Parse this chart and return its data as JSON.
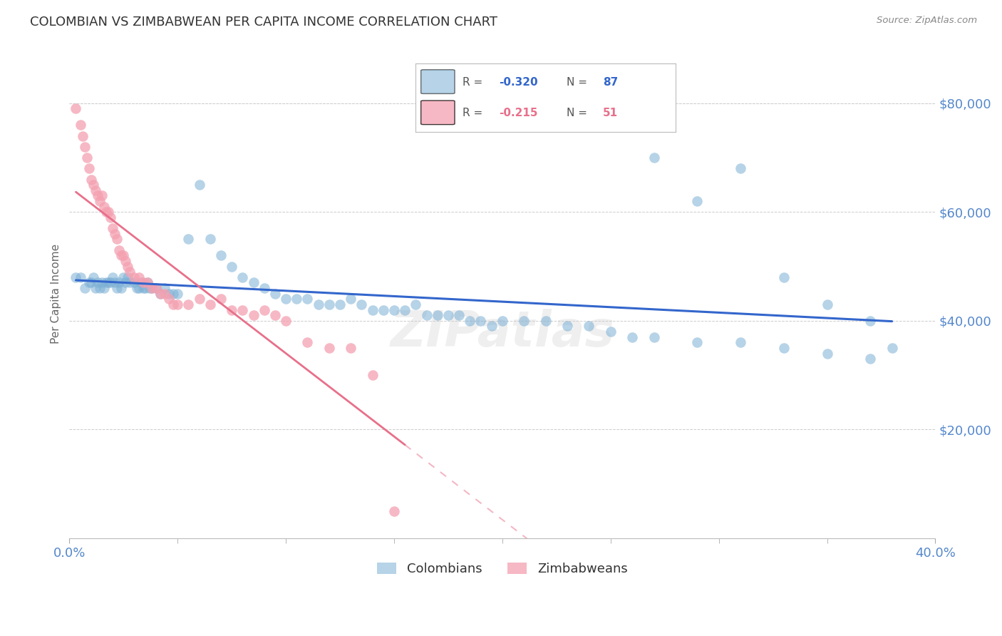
{
  "title": "COLOMBIAN VS ZIMBABWEAN PER CAPITA INCOME CORRELATION CHART",
  "source": "Source: ZipAtlas.com",
  "ylabel": "Per Capita Income",
  "xlim": [
    0.0,
    0.4
  ],
  "ylim": [
    0,
    90000
  ],
  "colombians_R": -0.32,
  "colombians_N": 87,
  "zimbabweans_R": -0.215,
  "zimbabweans_N": 51,
  "colombian_color": "#7BAFD4",
  "zimbabwean_color": "#F4A0B0",
  "colombian_line_color": "#3366CC",
  "zimbabwean_line_color": "#E8708A",
  "watermark": "ZIPatlas",
  "background_color": "#FFFFFF",
  "title_color": "#333333",
  "axis_label_color": "#5588CC",
  "grid_color": "#CCCCCC",
  "colombians_x": [
    0.003,
    0.005,
    0.007,
    0.009,
    0.01,
    0.011,
    0.012,
    0.013,
    0.014,
    0.015,
    0.016,
    0.017,
    0.018,
    0.019,
    0.02,
    0.021,
    0.022,
    0.023,
    0.024,
    0.025,
    0.026,
    0.027,
    0.028,
    0.03,
    0.031,
    0.032,
    0.033,
    0.034,
    0.035,
    0.036,
    0.037,
    0.038,
    0.04,
    0.042,
    0.044,
    0.046,
    0.048,
    0.05,
    0.055,
    0.06,
    0.065,
    0.07,
    0.075,
    0.08,
    0.085,
    0.09,
    0.095,
    0.1,
    0.105,
    0.11,
    0.115,
    0.12,
    0.125,
    0.13,
    0.135,
    0.14,
    0.145,
    0.15,
    0.155,
    0.16,
    0.165,
    0.17,
    0.175,
    0.18,
    0.185,
    0.19,
    0.195,
    0.2,
    0.21,
    0.22,
    0.23,
    0.24,
    0.25,
    0.26,
    0.27,
    0.29,
    0.31,
    0.33,
    0.35,
    0.37,
    0.27,
    0.29,
    0.31,
    0.33,
    0.35,
    0.37,
    0.38
  ],
  "colombians_y": [
    48000,
    48000,
    46000,
    47000,
    47000,
    48000,
    46000,
    47000,
    46000,
    47000,
    46000,
    47000,
    47000,
    47000,
    48000,
    47000,
    46000,
    47000,
    46000,
    48000,
    47000,
    48000,
    47000,
    47000,
    46000,
    46000,
    47000,
    46000,
    46000,
    47000,
    46000,
    46000,
    46000,
    45000,
    46000,
    45000,
    45000,
    45000,
    55000,
    65000,
    55000,
    52000,
    50000,
    48000,
    47000,
    46000,
    45000,
    44000,
    44000,
    44000,
    43000,
    43000,
    43000,
    44000,
    43000,
    42000,
    42000,
    42000,
    42000,
    43000,
    41000,
    41000,
    41000,
    41000,
    40000,
    40000,
    39000,
    40000,
    40000,
    40000,
    39000,
    39000,
    38000,
    37000,
    37000,
    36000,
    36000,
    35000,
    34000,
    33000,
    70000,
    62000,
    68000,
    48000,
    43000,
    40000,
    35000
  ],
  "zimbabweans_x": [
    0.003,
    0.005,
    0.006,
    0.007,
    0.008,
    0.009,
    0.01,
    0.011,
    0.012,
    0.013,
    0.014,
    0.015,
    0.016,
    0.017,
    0.018,
    0.019,
    0.02,
    0.021,
    0.022,
    0.023,
    0.024,
    0.025,
    0.026,
    0.027,
    0.028,
    0.03,
    0.032,
    0.034,
    0.036,
    0.038,
    0.04,
    0.042,
    0.044,
    0.046,
    0.048,
    0.05,
    0.055,
    0.06,
    0.065,
    0.07,
    0.075,
    0.08,
    0.085,
    0.09,
    0.095,
    0.1,
    0.11,
    0.12,
    0.13,
    0.14,
    0.15
  ],
  "zimbabweans_y": [
    79000,
    76000,
    74000,
    72000,
    70000,
    68000,
    66000,
    65000,
    64000,
    63000,
    62000,
    63000,
    61000,
    60000,
    60000,
    59000,
    57000,
    56000,
    55000,
    53000,
    52000,
    52000,
    51000,
    50000,
    49000,
    48000,
    48000,
    47000,
    47000,
    46000,
    46000,
    45000,
    45000,
    44000,
    43000,
    43000,
    43000,
    44000,
    43000,
    44000,
    42000,
    42000,
    41000,
    42000,
    41000,
    40000,
    36000,
    35000,
    35000,
    30000,
    5000
  ]
}
